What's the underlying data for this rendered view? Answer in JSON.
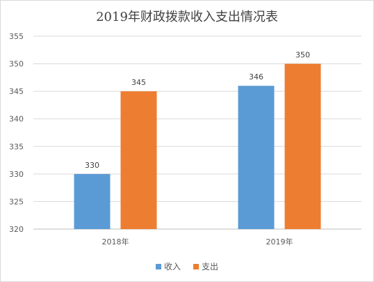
{
  "chart_data": {
    "type": "bar",
    "title": "2019年财政拨款收入支出情况表",
    "categories": [
      "2018年",
      "2019年"
    ],
    "series": [
      {
        "name": "收入",
        "color": "#5b9bd5",
        "values": [
          330,
          346
        ]
      },
      {
        "name": "支出",
        "color": "#ed7d31",
        "values": [
          345,
          350
        ]
      }
    ],
    "ylim": [
      320,
      355
    ],
    "yticks": [
      320,
      325,
      330,
      335,
      340,
      345,
      350,
      355
    ],
    "grid": true,
    "legend_position": "bottom",
    "xlabel": "",
    "ylabel": ""
  }
}
